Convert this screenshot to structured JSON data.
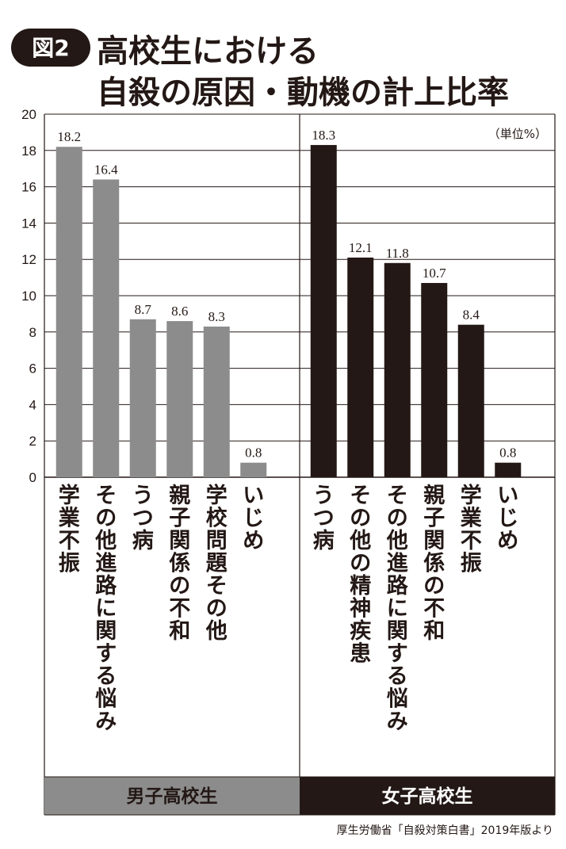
{
  "figure": {
    "badge": "図2",
    "title_line1": "高校生における",
    "title_line2": "自殺の原因・動機の計上比率"
  },
  "chart_data": {
    "type": "bar",
    "unit_label": "（単位%）",
    "ylim": [
      0,
      20
    ],
    "yticks": [
      "0",
      "2",
      "4",
      "6",
      "8",
      "10",
      "12",
      "14",
      "16",
      "18",
      "20"
    ],
    "grid": true,
    "source": "厚生労働省「自殺対策白書」2019年版より",
    "groups": [
      {
        "name": "男子高校生",
        "bar_color": "#8c8c8c",
        "label_bg": "#8c8c8c",
        "label_color": "#231815",
        "categories": [
          "学業不振",
          "その他進路に関する悩み",
          "うつ病",
          "親子関係の不和",
          "学校問題その他",
          "いじめ"
        ],
        "values": [
          18.2,
          16.4,
          8.7,
          8.6,
          8.3,
          0.8
        ],
        "value_labels": [
          "18.2",
          "16.4",
          "8.7",
          "8.6",
          "8.3",
          "0.8"
        ]
      },
      {
        "name": "女子高校生",
        "bar_color": "#231815",
        "label_bg": "#231815",
        "label_color": "#ffffff",
        "categories": [
          "うつ病",
          "その他の精神疾患",
          "その他進路に関する悩み",
          "親子関係の不和",
          "学業不振",
          "いじめ"
        ],
        "values": [
          18.3,
          12.1,
          11.8,
          10.7,
          8.4,
          0.8
        ],
        "value_labels": [
          "18.3",
          "12.1",
          "11.8",
          "10.7",
          "8.4",
          "0.8"
        ]
      }
    ]
  }
}
